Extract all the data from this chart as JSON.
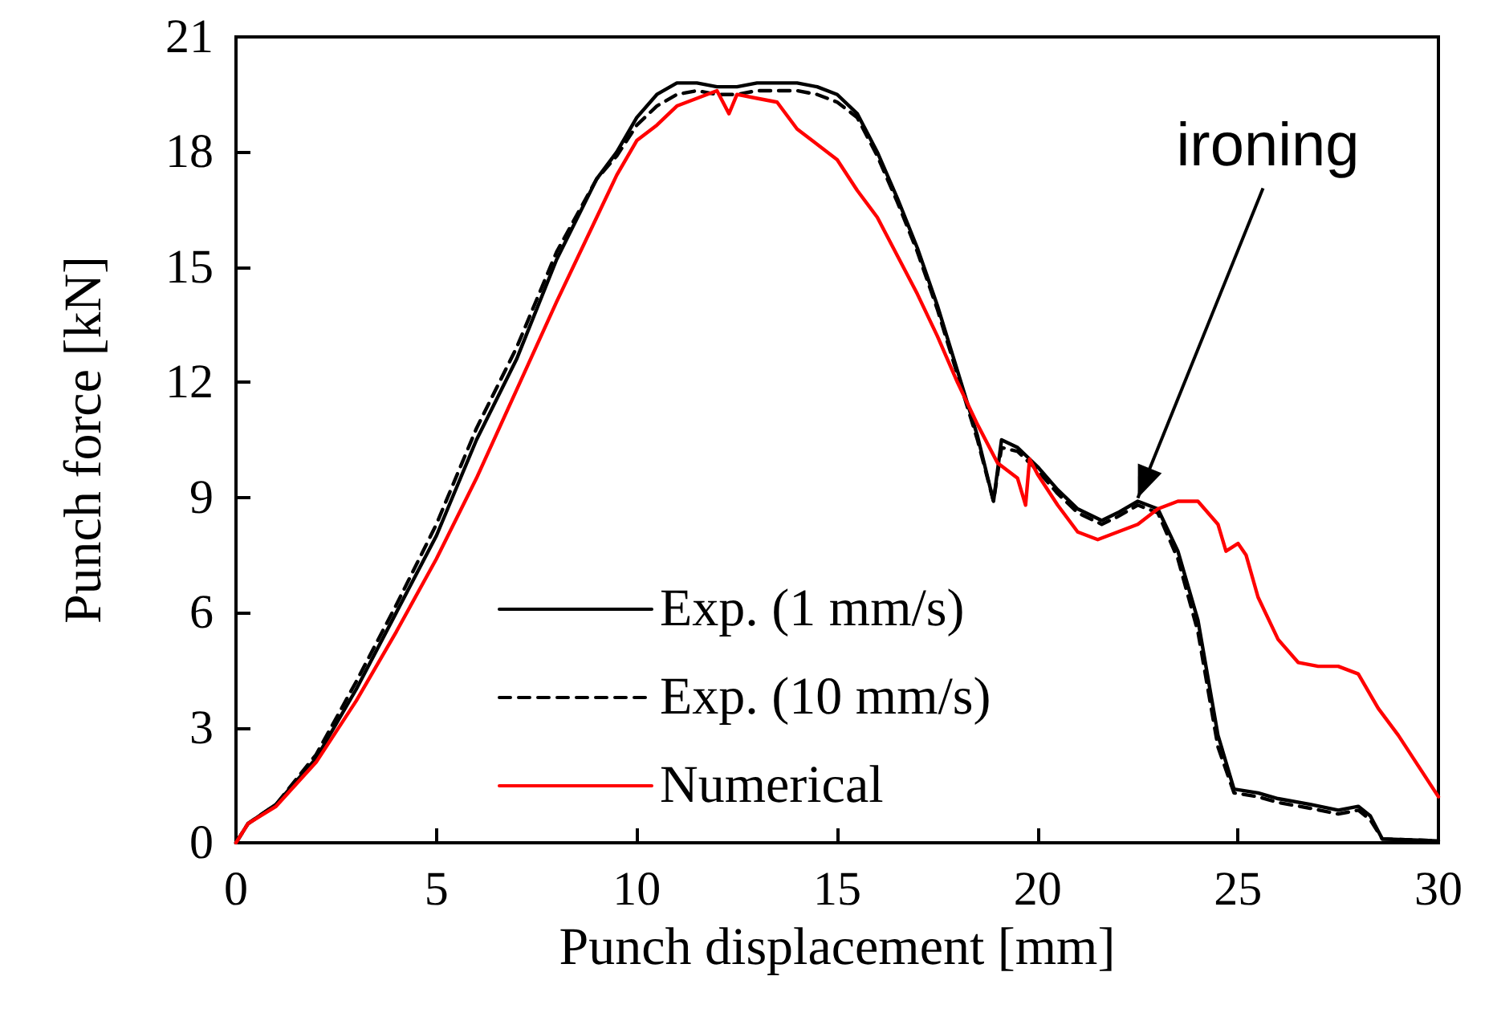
{
  "chart_data": {
    "type": "line",
    "xlabel": "Punch displacement [mm]",
    "ylabel": "Punch force [kN]",
    "xlim": [
      0,
      30
    ],
    "xticks": [
      0,
      5,
      10,
      15,
      20,
      25,
      30
    ],
    "ylim": [
      0,
      21
    ],
    "yticks": [
      0,
      3,
      6,
      9,
      12,
      15,
      18,
      21
    ],
    "grid": false,
    "legend": "bottom",
    "marker": "none",
    "annotations": [
      {
        "text": "ironing",
        "x": 22.5,
        "y": 8.9
      }
    ],
    "series": [
      {
        "name": "Exp. (1 mm/s)",
        "color": "#000000",
        "line_style": "solid",
        "x": [
          0,
          0.3,
          1,
          2,
          3,
          4,
          5,
          6,
          7,
          8,
          9,
          9.5,
          10,
          10.5,
          11,
          11.5,
          12,
          12.5,
          13,
          14,
          14.5,
          15,
          15.5,
          16,
          16.5,
          17,
          17.5,
          18,
          18.5,
          18.9,
          19.1,
          19.5,
          20,
          20.5,
          21,
          21.6,
          22,
          22.5,
          23,
          23.5,
          24,
          24.5,
          24.9,
          25.5,
          26,
          26.8,
          27.5,
          28,
          28.3,
          28.6,
          30
        ],
        "values": [
          0,
          0.5,
          1.0,
          2.2,
          4.0,
          6.0,
          8.0,
          10.5,
          12.6,
          15.2,
          17.3,
          18.0,
          18.9,
          19.5,
          19.8,
          19.8,
          19.7,
          19.7,
          19.8,
          19.8,
          19.7,
          19.5,
          19.0,
          18.0,
          16.8,
          15.5,
          14.0,
          12.3,
          10.6,
          8.9,
          10.5,
          10.3,
          9.8,
          9.2,
          8.7,
          8.4,
          8.6,
          8.9,
          8.7,
          7.6,
          5.8,
          2.8,
          1.4,
          1.3,
          1.15,
          1.0,
          0.85,
          0.95,
          0.7,
          0.1,
          0.05
        ]
      },
      {
        "name": "Exp. (10 mm/s)",
        "color": "#000000",
        "line_style": "dashed",
        "x": [
          0,
          0.3,
          1,
          2,
          3,
          4,
          5,
          6,
          7,
          8,
          9,
          9.5,
          10,
          10.5,
          11,
          11.5,
          12,
          12.5,
          13,
          14,
          14.5,
          15,
          15.5,
          16,
          16.5,
          17,
          17.5,
          18,
          18.5,
          18.9,
          19.1,
          19.5,
          20,
          20.5,
          21,
          21.6,
          22,
          22.5,
          23,
          23.5,
          24,
          24.5,
          24.9,
          25.5,
          26,
          26.8,
          27.5,
          28,
          28.3,
          28.6,
          30
        ],
        "values": [
          0,
          0.5,
          1.0,
          2.3,
          4.2,
          6.2,
          8.3,
          10.8,
          12.9,
          15.4,
          17.3,
          17.9,
          18.7,
          19.2,
          19.5,
          19.6,
          19.5,
          19.5,
          19.6,
          19.6,
          19.5,
          19.3,
          18.9,
          17.9,
          16.7,
          15.4,
          13.9,
          12.2,
          10.5,
          8.9,
          10.3,
          10.2,
          9.7,
          9.1,
          8.6,
          8.3,
          8.5,
          8.8,
          8.6,
          7.4,
          5.5,
          2.5,
          1.3,
          1.2,
          1.05,
          0.9,
          0.75,
          0.85,
          0.6,
          0.1,
          0.05
        ]
      },
      {
        "name": "Numerical",
        "color": "#ff0000",
        "line_style": "solid",
        "x": [
          0,
          0.3,
          1,
          2,
          3,
          4,
          5,
          6,
          7,
          8,
          9,
          9.5,
          10,
          10.5,
          11,
          11.5,
          12,
          12.3,
          12.5,
          13,
          13.5,
          14,
          15,
          15.5,
          16,
          16.5,
          17,
          17.5,
          18,
          18.5,
          19,
          19.5,
          19.7,
          19.8,
          20,
          20.5,
          21,
          21.5,
          22,
          22.5,
          23,
          23.5,
          24,
          24.5,
          24.7,
          25,
          25.2,
          25.5,
          26,
          26.5,
          27,
          27.5,
          28,
          28.5,
          29,
          29.5,
          30
        ],
        "values": [
          0,
          0.5,
          0.95,
          2.1,
          3.7,
          5.5,
          7.4,
          9.5,
          11.8,
          14.1,
          16.3,
          17.4,
          18.3,
          18.7,
          19.2,
          19.4,
          19.6,
          19.0,
          19.5,
          19.4,
          19.3,
          18.6,
          17.8,
          17.0,
          16.3,
          15.3,
          14.3,
          13.2,
          12.0,
          10.9,
          9.9,
          9.5,
          8.8,
          10.0,
          9.6,
          8.8,
          8.1,
          7.9,
          8.1,
          8.3,
          8.7,
          8.9,
          8.9,
          8.3,
          7.6,
          7.8,
          7.5,
          6.4,
          5.3,
          4.7,
          4.6,
          4.6,
          4.4,
          3.5,
          2.8,
          2.0,
          1.2
        ]
      }
    ]
  }
}
